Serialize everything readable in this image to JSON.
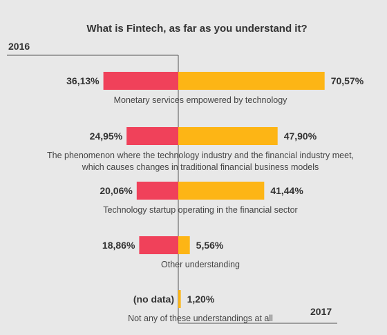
{
  "chart_data": {
    "type": "bar",
    "title": "What is Fintech, as far as you understand it?",
    "series": [
      {
        "name": "2016",
        "color": "#f0415a",
        "side": "left"
      },
      {
        "name": "2017",
        "color": "#fdb515",
        "side": "right"
      }
    ],
    "categories": [
      "Monetary services empowered by technology",
      "The phenomenon where the technology industry and the financial industry meet, which causes changes in traditional financial business models",
      "Technology startup operating in the financial sector",
      "Other understanding",
      "Not any of these understandings at all"
    ],
    "category_lines": [
      [
        "Monetary services empowered by technology"
      ],
      [
        "The phenomenon where the technology industry and the financial industry meet,",
        "which causes changes in traditional financial business models"
      ],
      [
        "Technology startup operating in the financial sector"
      ],
      [
        "Other understanding"
      ],
      [
        "Not any of these understandings at all"
      ]
    ],
    "values_2016": [
      36.13,
      24.95,
      20.06,
      18.86,
      null
    ],
    "values_2017": [
      70.57,
      47.9,
      41.44,
      5.56,
      1.2
    ],
    "labels_2016": [
      "36,13%",
      "24,95%",
      "20,06%",
      "18,86%",
      "(no data)"
    ],
    "labels_2017": [
      "70,57%",
      "47,90%",
      "41,44%",
      "5,56%",
      "1,20%"
    ],
    "legend_placement": "top-left and bottom-right",
    "grid": false
  }
}
